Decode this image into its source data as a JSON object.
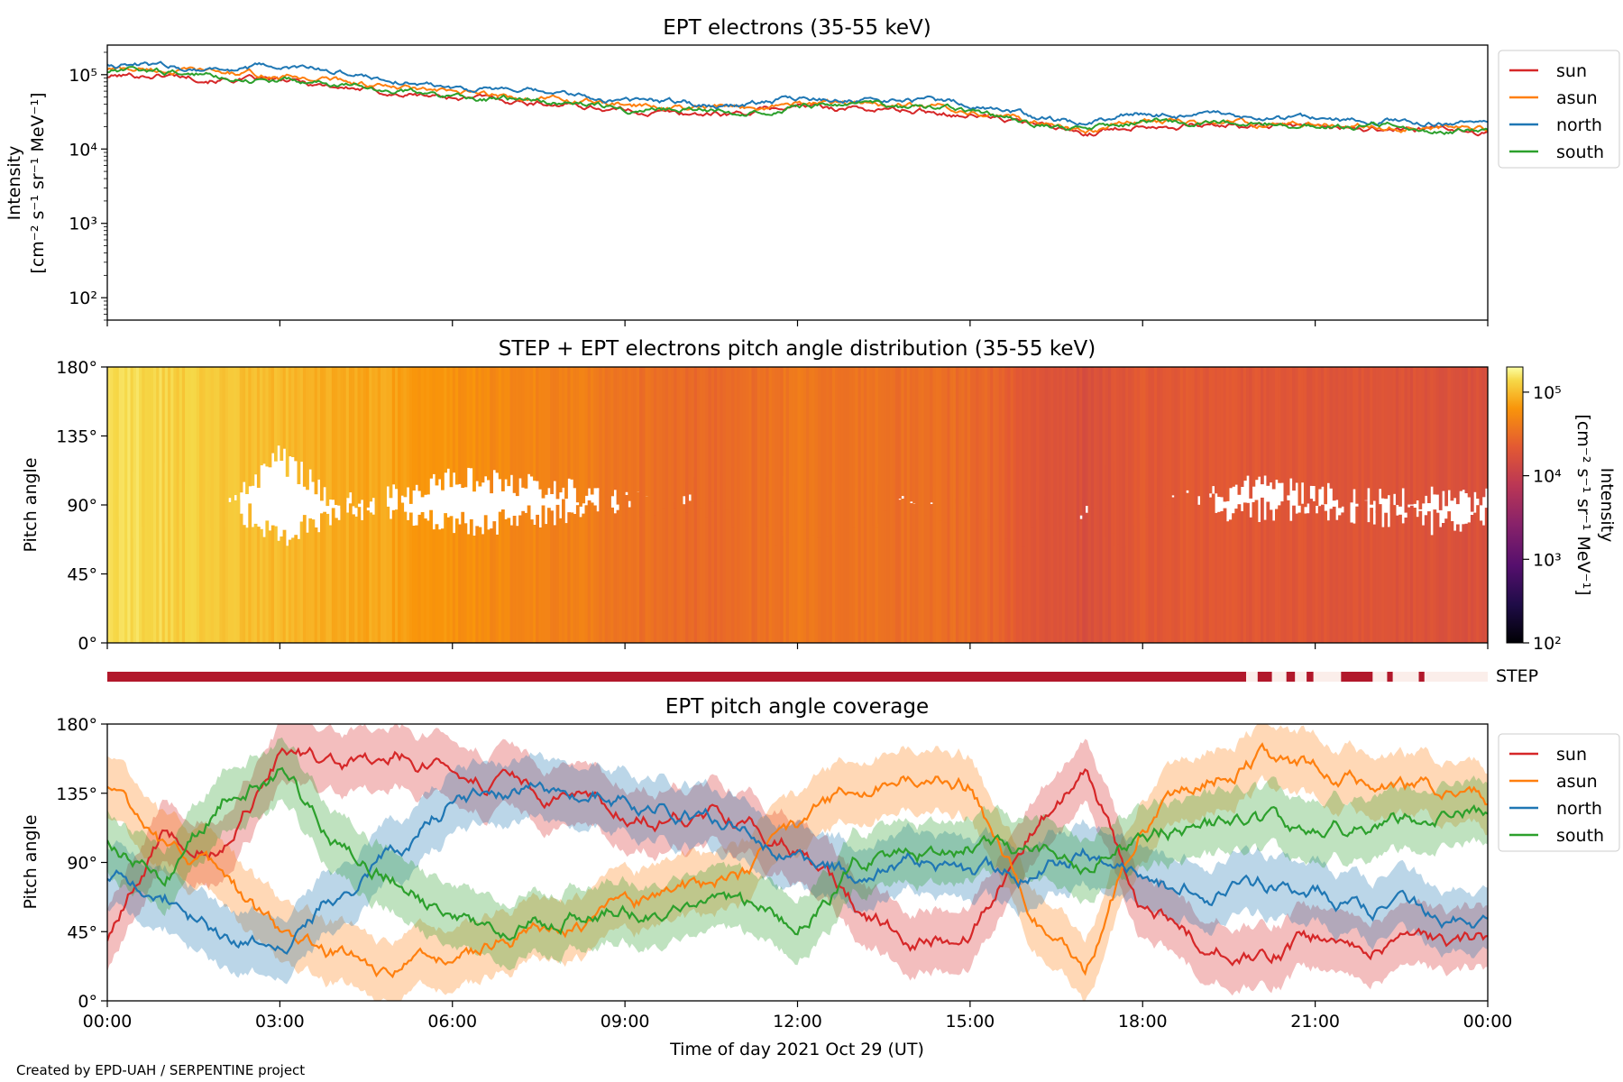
{
  "footer": "Created by EPD-UAH / SERPENTINE project",
  "colors": {
    "sun": "#d62728",
    "asun": "#ff7f0e",
    "north": "#1f77b4",
    "south": "#2ca02c",
    "step_bar": "#b2182b",
    "step_bar_light": "#fbeeea"
  },
  "chart_data": [
    {
      "id": "intensity",
      "type": "line",
      "title": "EPT electrons (35-55 keV)",
      "ylabel_line1": "Intensity",
      "ylabel_line2": "[cm⁻² s⁻¹ sr⁻¹ MeV⁻¹]",
      "yscale": "log",
      "ylim": [
        50,
        250000
      ],
      "yticks": [
        {
          "value": 100,
          "label": "10²"
        },
        {
          "value": 1000,
          "label": "10³"
        },
        {
          "value": 10000,
          "label": "10⁴"
        },
        {
          "value": 100000,
          "label": "10⁵"
        }
      ],
      "legend_position": "outside-right",
      "x": [
        "00:00",
        "01:00",
        "02:00",
        "03:00",
        "04:00",
        "05:00",
        "06:00",
        "07:00",
        "08:00",
        "09:00",
        "10:00",
        "11:00",
        "12:00",
        "13:00",
        "14:00",
        "15:00",
        "16:00",
        "17:00",
        "18:00",
        "19:00",
        "20:00",
        "21:00",
        "22:00",
        "23:00",
        "24:00"
      ],
      "series": [
        {
          "name": "sun",
          "key": "sun",
          "values": [
            95000,
            100000,
            90000,
            80000,
            70000,
            55000,
            50000,
            45000,
            40000,
            33000,
            30000,
            30000,
            38000,
            35000,
            33000,
            30000,
            22000,
            16000,
            22000,
            21000,
            20000,
            20000,
            19000,
            18000,
            17000
          ]
        },
        {
          "name": "asun",
          "key": "asun",
          "values": [
            120000,
            115000,
            105000,
            95000,
            85000,
            65000,
            55000,
            50000,
            45000,
            38000,
            35000,
            34000,
            42000,
            40000,
            38000,
            34000,
            24000,
            18000,
            24000,
            23000,
            22000,
            22000,
            21000,
            20000,
            19000
          ]
        },
        {
          "name": "north",
          "key": "north",
          "values": [
            140000,
            130000,
            120000,
            125000,
            110000,
            85000,
            70000,
            60000,
            52000,
            45000,
            42000,
            40000,
            48000,
            46000,
            44000,
            40000,
            28000,
            22000,
            30000,
            27000,
            25000,
            25000,
            24000,
            23000,
            22000
          ]
        },
        {
          "name": "south",
          "key": "south",
          "values": [
            110000,
            108000,
            95000,
            85000,
            72000,
            60000,
            52000,
            46000,
            42000,
            36000,
            33000,
            32000,
            40000,
            38000,
            35000,
            32000,
            22000,
            17000,
            23000,
            22000,
            21000,
            21000,
            20000,
            19000,
            18000
          ]
        }
      ]
    },
    {
      "id": "pad",
      "type": "heatmap",
      "title": "STEP + EPT electrons pitch angle distribution (35-55 keV)",
      "ylabel": "Pitch angle",
      "ylim": [
        0,
        180
      ],
      "yticks": [
        "0°",
        "45°",
        "90°",
        "135°",
        "180°"
      ],
      "colorbar_label_line1": "Intensity",
      "colorbar_label_line2": "[cm⁻² s⁻¹ sr⁻¹ MeV⁻¹]",
      "colorbar_scale": "log",
      "colorbar_range": [
        100,
        200000
      ],
      "colorbar_ticks": [
        {
          "value": 100,
          "label": "10²"
        },
        {
          "value": 1000,
          "label": "10³"
        },
        {
          "value": 10000,
          "label": "10⁴"
        },
        {
          "value": 100000,
          "label": "10⁵"
        }
      ],
      "colormap": "inferno",
      "x": [
        "00:00",
        "01:00",
        "02:00",
        "03:00",
        "04:00",
        "05:00",
        "06:00",
        "07:00",
        "08:00",
        "09:00",
        "10:00",
        "11:00",
        "12:00",
        "13:00",
        "14:00",
        "15:00",
        "16:00",
        "17:00",
        "18:00",
        "19:00",
        "20:00",
        "21:00",
        "22:00",
        "23:00",
        "24:00"
      ],
      "intensity": [
        150000,
        130000,
        110000,
        95000,
        85000,
        75000,
        60000,
        50000,
        45000,
        35000,
        30000,
        30000,
        38000,
        35000,
        33000,
        30000,
        22000,
        16000,
        22000,
        21000,
        20000,
        20000,
        19000,
        18000,
        17000
      ]
    },
    {
      "id": "step",
      "type": "bar",
      "label": "STEP",
      "segments": [
        {
          "start": 0,
          "end": 19.8,
          "on": true
        },
        {
          "start": 19.8,
          "end": 20.0,
          "on": false
        },
        {
          "start": 20.0,
          "end": 20.25,
          "on": true
        },
        {
          "start": 20.25,
          "end": 20.5,
          "on": false
        },
        {
          "start": 20.5,
          "end": 20.65,
          "on": true
        },
        {
          "start": 20.65,
          "end": 20.85,
          "on": false
        },
        {
          "start": 20.85,
          "end": 20.97,
          "on": true
        },
        {
          "start": 20.97,
          "end": 21.45,
          "on": false
        },
        {
          "start": 21.45,
          "end": 22.0,
          "on": true
        },
        {
          "start": 22.0,
          "end": 22.25,
          "on": false
        },
        {
          "start": 22.25,
          "end": 22.35,
          "on": true
        },
        {
          "start": 22.35,
          "end": 22.8,
          "on": false
        },
        {
          "start": 22.8,
          "end": 22.9,
          "on": true
        },
        {
          "start": 22.9,
          "end": 24.0,
          "on": false
        }
      ]
    },
    {
      "id": "coverage",
      "type": "area",
      "title": "EPT pitch angle coverage",
      "ylabel": "Pitch angle",
      "xlabel": "Time of day 2021 Oct 29 (UT)",
      "ylim": [
        0,
        180
      ],
      "yticks": [
        "0°",
        "45°",
        "90°",
        "135°",
        "180°"
      ],
      "xtick_labels": [
        "00:00",
        "03:00",
        "06:00",
        "09:00",
        "12:00",
        "15:00",
        "18:00",
        "21:00",
        "00:00"
      ],
      "legend_position": "outside-right",
      "band_halfwidth_deg": 20,
      "x": [
        "00:00",
        "01:00",
        "02:00",
        "03:00",
        "04:00",
        "05:00",
        "06:00",
        "07:00",
        "08:00",
        "09:00",
        "10:00",
        "11:00",
        "12:00",
        "13:00",
        "14:00",
        "15:00",
        "16:00",
        "17:00",
        "18:00",
        "19:00",
        "20:00",
        "21:00",
        "22:00",
        "23:00",
        "24:00"
      ],
      "series": [
        {
          "name": "sun",
          "key": "sun",
          "values": [
            40,
            110,
            100,
            160,
            150,
            160,
            150,
            140,
            130,
            120,
            120,
            120,
            100,
            60,
            40,
            45,
            110,
            150,
            60,
            40,
            30,
            40,
            40,
            35,
            40
          ]
        },
        {
          "name": "asun",
          "key": "asun",
          "values": [
            140,
            100,
            80,
            40,
            30,
            20,
            30,
            40,
            50,
            60,
            70,
            80,
            110,
            140,
            150,
            140,
            60,
            20,
            120,
            140,
            160,
            150,
            140,
            135,
            130
          ]
        },
        {
          "name": "north",
          "key": "north",
          "values": [
            80,
            70,
            40,
            30,
            70,
            100,
            130,
            135,
            135,
            130,
            125,
            115,
            90,
            85,
            90,
            80,
            80,
            95,
            80,
            70,
            75,
            70,
            60,
            55,
            55
          ]
        },
        {
          "name": "south",
          "key": "south",
          "values": [
            105,
            80,
            130,
            150,
            100,
            80,
            55,
            50,
            55,
            60,
            60,
            65,
            45,
            90,
            95,
            100,
            100,
            85,
            110,
            115,
            115,
            110,
            115,
            120,
            125
          ]
        }
      ]
    }
  ]
}
